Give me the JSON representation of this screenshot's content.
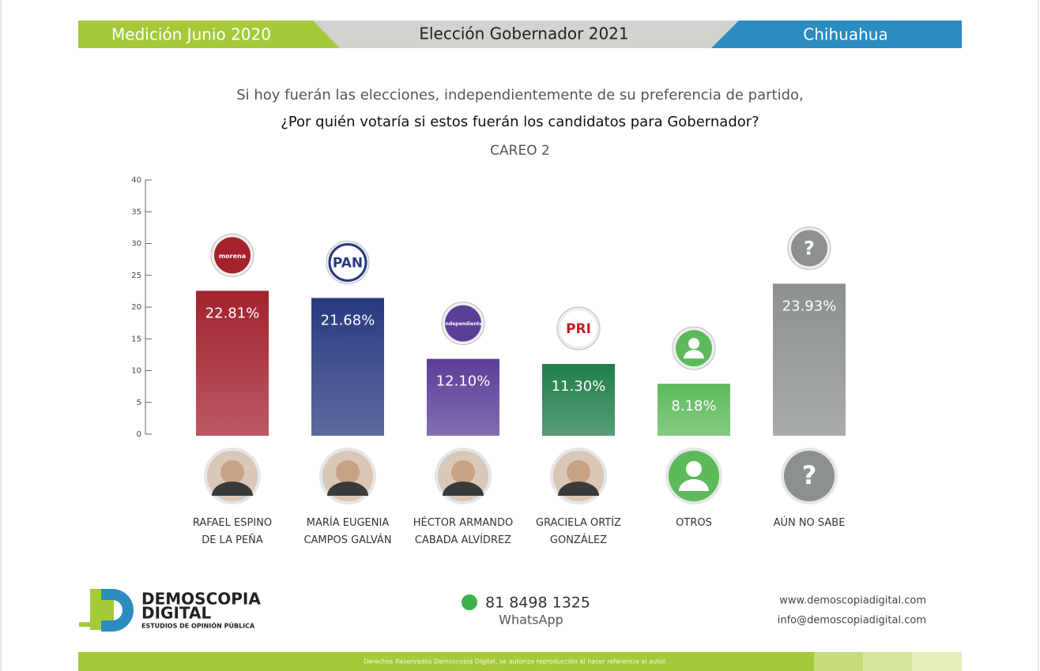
{
  "header": {
    "left": "Medición Junio 2020",
    "center": "Elección Gobernador 2021",
    "right": "Chihuahua"
  },
  "chart_data": {
    "type": "bar",
    "title": "Si hoy fuerán las elecciones, independientemente de su preferencia de partido,",
    "subtitle": "¿Por quién votaría si estos fuerán los candidatos para Gobernador?",
    "annotation": "CAREO 2",
    "categories": [
      "RAFAEL ESPINO\nDE LA PEÑA",
      "MARÍA EUGENIA\nCAMPOS GALVÁN",
      "HÉCTOR ARMANDO\nCABADA ALVÍDREZ",
      "GRACIELA ORTÍZ\nGONZÁLEZ",
      "OTROS",
      "AÚN NO SABE"
    ],
    "values": [
      22.81,
      21.68,
      12.1,
      11.3,
      8.18,
      23.93
    ],
    "value_labels": [
      "22.81%",
      "21.68%",
      "12.10%",
      "11.30%",
      "8.18%",
      "23.93%"
    ],
    "colors": [
      "#a3222e",
      "#283a80",
      "#5a3e98",
      "#1f7d4a",
      "#5cba5b",
      "#8d9090"
    ],
    "ylim": [
      0,
      40
    ],
    "yticks": [
      0,
      5,
      10,
      15,
      20,
      25,
      30,
      35,
      40
    ]
  },
  "party_logos": [
    "morena",
    "PAN",
    "Independiente",
    "PRI"
  ],
  "unknown_icon": "?",
  "footer": {
    "brand": "DEMOSCOPIA",
    "brand2": "DIGITAL",
    "tagline": "ESTUDIOS DE OPINIÓN PÚBLICA",
    "phone": "81 8498 1325",
    "phone_note": "WhatsApp",
    "web": "www.demoscopiadigital.com",
    "email": "info@demoscopiadigital.com",
    "rights": "Derechos Reservados Demoscopia Digital, se autoriza reproducción al hacer referencia al autor."
  }
}
